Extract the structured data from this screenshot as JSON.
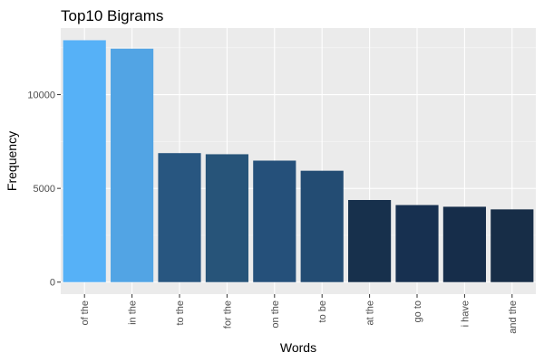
{
  "chart_data": {
    "type": "bar",
    "title": "Top10 Bigrams",
    "xlabel": "Words",
    "ylabel": "Frequency",
    "categories": [
      "of the",
      "in the",
      "to the",
      "for the",
      "on the",
      "to be",
      "at the",
      "go to",
      "i have",
      "and the"
    ],
    "values": [
      12900,
      12450,
      6880,
      6820,
      6480,
      5940,
      4380,
      4110,
      4020,
      3880
    ],
    "colors": [
      "#56B1F7",
      "#52A4E4",
      "#285680",
      "#275479",
      "#25507A",
      "#234C73",
      "#17304C",
      "#173050",
      "#162D4A",
      "#172D47"
    ],
    "yticks": [
      0,
      5000,
      10000
    ],
    "ylim": [
      -640,
      13550
    ],
    "grid": true,
    "legend": "none",
    "panel_background": "#EBEBEB"
  }
}
